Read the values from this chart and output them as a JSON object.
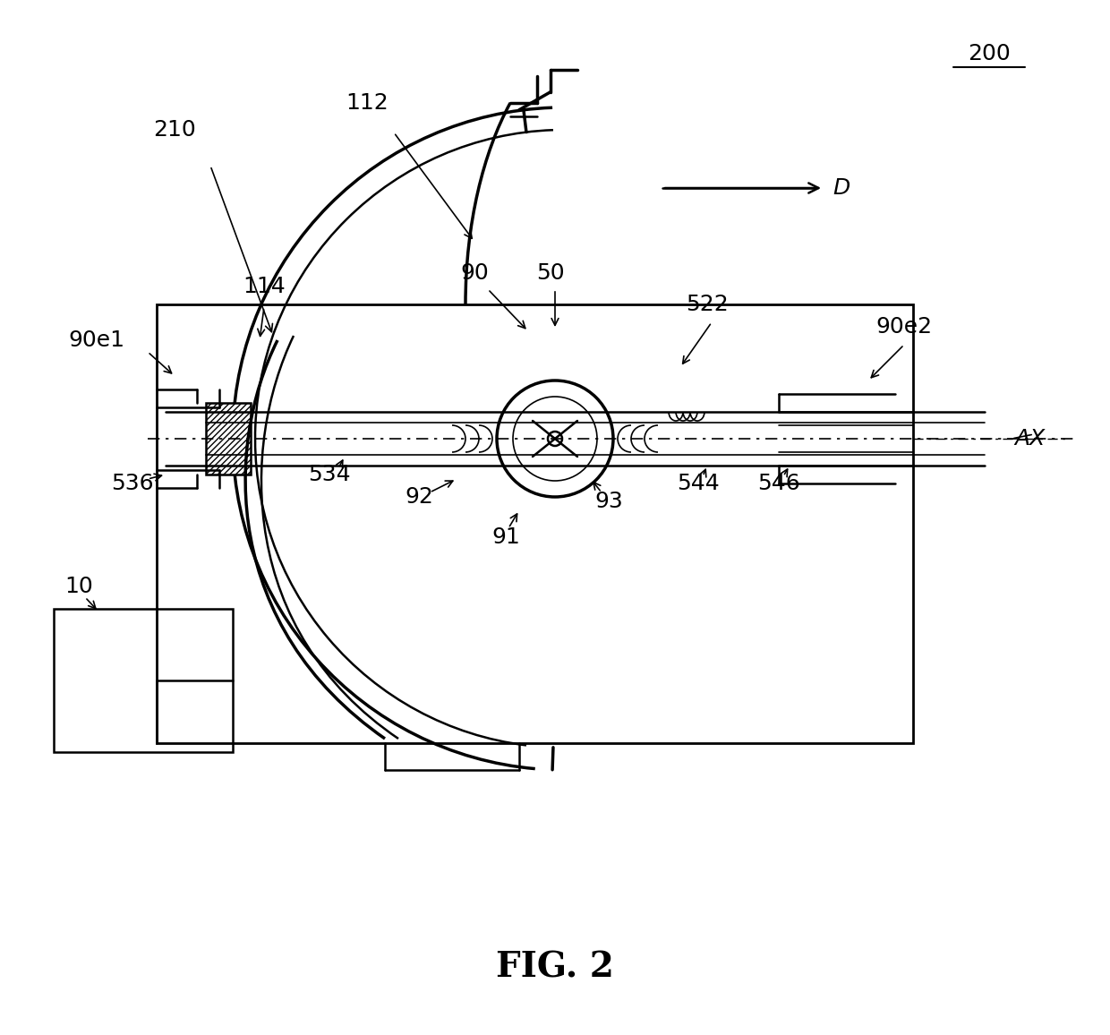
{
  "bg_color": "#ffffff",
  "line_color": "#000000",
  "fig_label": "FIG. 2",
  "ref_200": "200",
  "ref_210": "210",
  "ref_112": "112",
  "ref_114": "114",
  "ref_90": "90",
  "ref_50": "50",
  "ref_90e1": "90e1",
  "ref_90e2": "90e2",
  "ref_522": "522",
  "ref_AX": "AX",
  "ref_D": "D",
  "ref_534": "534",
  "ref_536": "536",
  "ref_92": "92",
  "ref_91": "91",
  "ref_93": "93",
  "ref_544": "544",
  "ref_546": "546",
  "ref_10": "10"
}
